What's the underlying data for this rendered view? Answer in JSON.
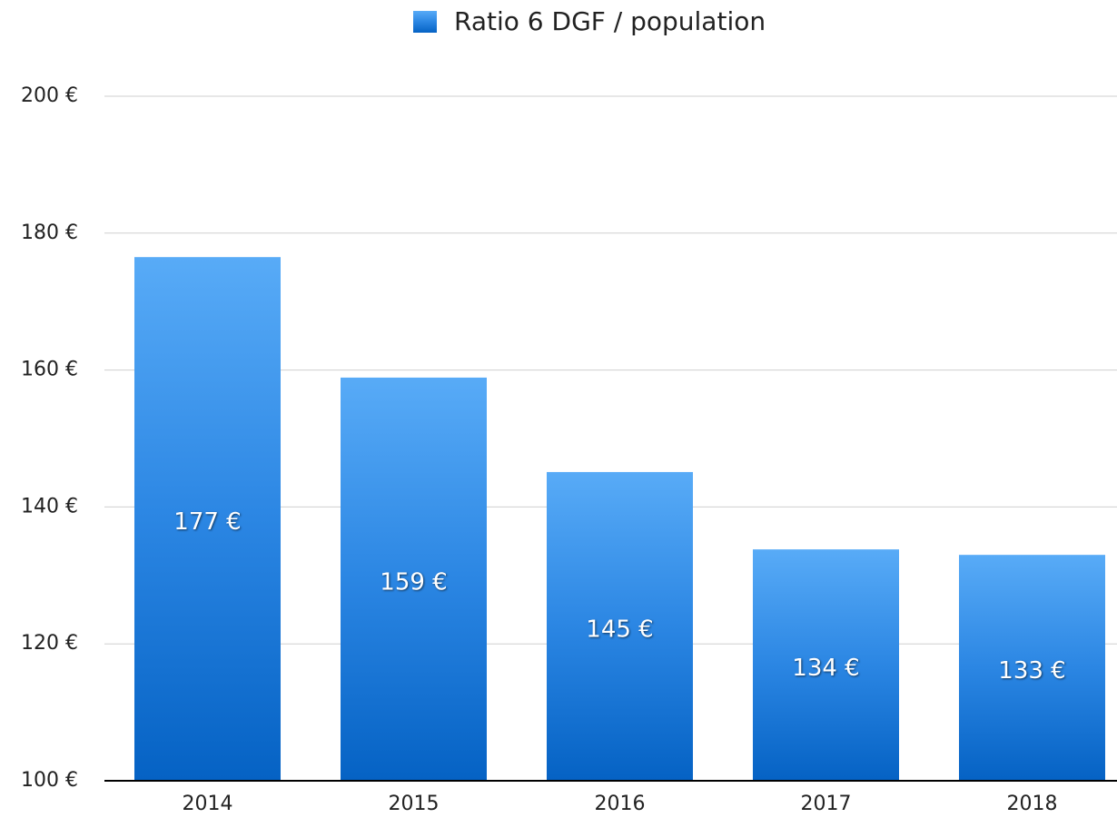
{
  "chart_data": {
    "type": "bar",
    "legend": "Ratio 6 DGF / population",
    "categories": [
      "2014",
      "2015",
      "2016",
      "2017",
      "2018"
    ],
    "values": [
      176.5,
      158.9,
      145.1,
      133.8,
      133.0
    ],
    "value_labels": [
      "177 €",
      "159 €",
      "145 €",
      "134 €",
      "133 €"
    ],
    "color": "#2b86e3",
    "ylim": [
      100,
      200
    ],
    "yticks": [
      {
        "value": 100,
        "label": "100 €"
      },
      {
        "value": 120,
        "label": "120 €"
      },
      {
        "value": 140,
        "label": "140 €"
      },
      {
        "value": 160,
        "label": "160 €"
      },
      {
        "value": 180,
        "label": "180 €"
      },
      {
        "value": 200,
        "label": "200 €"
      }
    ],
    "grid": true
  }
}
